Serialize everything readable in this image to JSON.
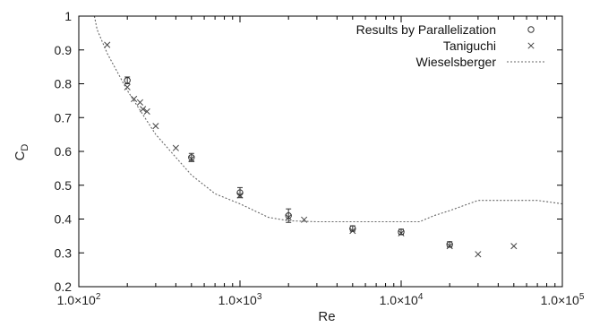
{
  "chart_data": {
    "type": "scatter",
    "xscale": "log",
    "xlim": [
      100,
      100000
    ],
    "ylim": [
      0.2,
      1.0
    ],
    "xlabel": "Re",
    "ylabel_main": "C",
    "ylabel_sub": "D",
    "grid": false,
    "legend_position": "top-right",
    "x_ticks": [
      {
        "value": 100,
        "mantissa": "1.0×10",
        "exp": "2"
      },
      {
        "value": 1000,
        "mantissa": "1.0×10",
        "exp": "3"
      },
      {
        "value": 10000,
        "mantissa": "1.0×10",
        "exp": "4"
      },
      {
        "value": 100000,
        "mantissa": "1.0×10",
        "exp": "5"
      }
    ],
    "y_ticks": [
      {
        "value": 0.2,
        "label": "0.2"
      },
      {
        "value": 0.3,
        "label": "0.3"
      },
      {
        "value": 0.4,
        "label": "0.4"
      },
      {
        "value": 0.5,
        "label": "0.5"
      },
      {
        "value": 0.6,
        "label": "0.6"
      },
      {
        "value": 0.7,
        "label": "0.7"
      },
      {
        "value": 0.8,
        "label": "0.8"
      },
      {
        "value": 0.9,
        "label": "0.9"
      },
      {
        "value": 1.0,
        "label": "1"
      }
    ],
    "series": [
      {
        "name": "Results by Parallelization",
        "marker": "circle",
        "points": [
          {
            "x": 200,
            "y": 0.81,
            "err": 0.01
          },
          {
            "x": 500,
            "y": 0.582,
            "err": 0.012
          },
          {
            "x": 1000,
            "y": 0.478,
            "err": 0.015
          },
          {
            "x": 2000,
            "y": 0.41,
            "err": 0.02
          },
          {
            "x": 5000,
            "y": 0.372,
            "err": 0.008
          },
          {
            "x": 10000,
            "y": 0.362,
            "err": 0.008
          },
          {
            "x": 20000,
            "y": 0.325,
            "err": 0.008
          }
        ]
      },
      {
        "name": "Taniguchi",
        "marker": "cross",
        "points": [
          {
            "x": 150,
            "y": 0.915
          },
          {
            "x": 200,
            "y": 0.79
          },
          {
            "x": 220,
            "y": 0.755
          },
          {
            "x": 240,
            "y": 0.745
          },
          {
            "x": 250,
            "y": 0.725
          },
          {
            "x": 265,
            "y": 0.718
          },
          {
            "x": 300,
            "y": 0.675
          },
          {
            "x": 400,
            "y": 0.61
          },
          {
            "x": 500,
            "y": 0.578
          },
          {
            "x": 1000,
            "y": 0.47
          },
          {
            "x": 2000,
            "y": 0.405
          },
          {
            "x": 2500,
            "y": 0.398
          },
          {
            "x": 5000,
            "y": 0.365
          },
          {
            "x": 10000,
            "y": 0.358
          },
          {
            "x": 20000,
            "y": 0.32
          },
          {
            "x": 30000,
            "y": 0.296
          },
          {
            "x": 50000,
            "y": 0.32
          }
        ]
      },
      {
        "name": "Wieselsberger",
        "marker": "dotted-line",
        "points": [
          {
            "x": 125,
            "y": 1.0
          },
          {
            "x": 130,
            "y": 0.96
          },
          {
            "x": 150,
            "y": 0.89
          },
          {
            "x": 200,
            "y": 0.78
          },
          {
            "x": 300,
            "y": 0.65
          },
          {
            "x": 500,
            "y": 0.53
          },
          {
            "x": 700,
            "y": 0.475
          },
          {
            "x": 1000,
            "y": 0.445
          },
          {
            "x": 1500,
            "y": 0.405
          },
          {
            "x": 2000,
            "y": 0.395
          },
          {
            "x": 3000,
            "y": 0.392
          },
          {
            "x": 5000,
            "y": 0.392
          },
          {
            "x": 10000,
            "y": 0.392
          },
          {
            "x": 13000,
            "y": 0.392
          },
          {
            "x": 16000,
            "y": 0.41
          },
          {
            "x": 20000,
            "y": 0.425
          },
          {
            "x": 30000,
            "y": 0.455
          },
          {
            "x": 50000,
            "y": 0.455
          },
          {
            "x": 70000,
            "y": 0.455
          },
          {
            "x": 100000,
            "y": 0.445
          }
        ]
      }
    ]
  }
}
